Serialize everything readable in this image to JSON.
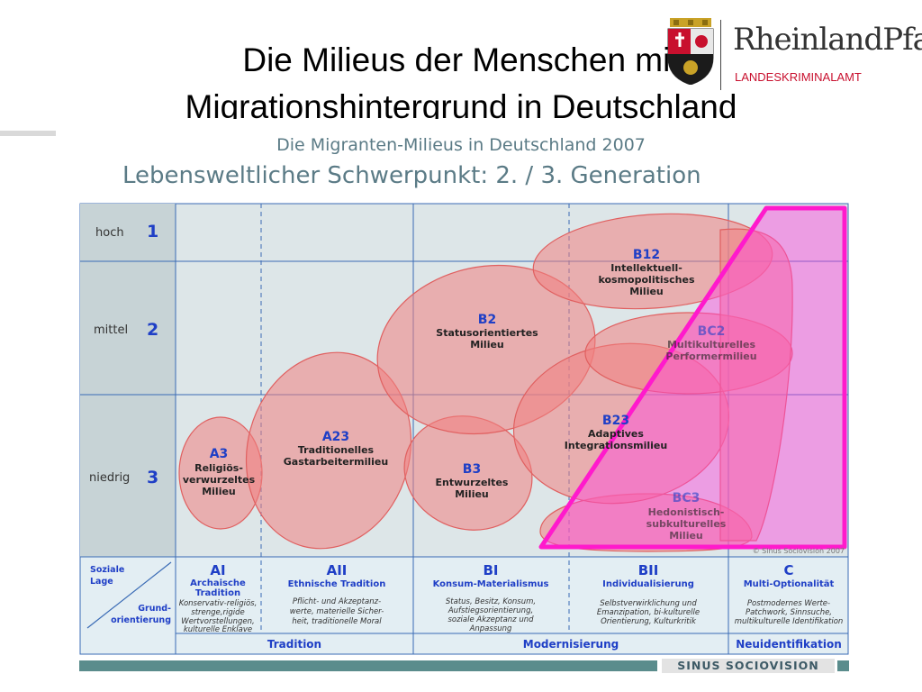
{
  "slide": {
    "title_line1": "Die Milieus der Menschen mit",
    "title_line2": "Migrationshintergrund in Deutschland"
  },
  "logo": {
    "name": "RheinlandPfalz",
    "subtitle": "LANDESKRIMINALAMT",
    "emblem": "coat-of-arms-icon"
  },
  "diagram": {
    "title": "Die Migranten-Milieus in Deutschland 2007",
    "subtitle": "Lebensweltlicher Schwerpunkt: 2. / 3. Generation",
    "rows": [
      {
        "label": "hoch",
        "num": "1"
      },
      {
        "label": "mittel",
        "num": "2"
      },
      {
        "label": "niedrig",
        "num": "3"
      }
    ],
    "milieus": [
      {
        "code": "A3",
        "lines": [
          "Religiös-",
          "verwurzeltes",
          "Milieu"
        ]
      },
      {
        "code": "A23",
        "lines": [
          "Traditionelles",
          "Gastarbeitermilieu"
        ]
      },
      {
        "code": "B2",
        "lines": [
          "Statusorientiertes",
          "Milieu"
        ]
      },
      {
        "code": "B3",
        "lines": [
          "Entwurzeltes",
          "Milieu"
        ]
      },
      {
        "code": "B12",
        "lines": [
          "Intellektuell-",
          "kosmopolitisches",
          "Milieu"
        ]
      },
      {
        "code": "B23",
        "lines": [
          "Adaptives",
          "Integrationsmilieu"
        ]
      },
      {
        "code": "BC2",
        "lines": [
          "Multikulturelles",
          "Performermilieu"
        ]
      },
      {
        "code": "BC3",
        "lines": [
          "Hedonistisch-",
          "subkulturelles",
          "Milieu"
        ]
      }
    ],
    "axis": {
      "social": [
        "Soziale",
        "Lage"
      ],
      "orientation": [
        "Grund-",
        "orientierung"
      ]
    },
    "columns": [
      {
        "code": "AI",
        "name": [
          "Archaische",
          "Tradition"
        ],
        "desc": [
          "Konservativ-religiös,",
          "strenge,rigide",
          "Wertvorstellungen,",
          "kulturelle Enklave"
        ]
      },
      {
        "code": "AII",
        "name": [
          "Ethnische Tradition"
        ],
        "desc": [
          "Pflicht- und Akzeptanz-",
          "werte, materielle Sicher-",
          "heit, traditionelle Moral"
        ]
      },
      {
        "code": "BI",
        "name": [
          "Konsum-Materialismus"
        ],
        "desc": [
          "Status, Besitz, Konsum,",
          "Aufstiegsorientierung,",
          "soziale Akzeptanz und",
          "Anpassung"
        ]
      },
      {
        "code": "BII",
        "name": [
          "Individualisierung"
        ],
        "desc": [
          "Selbstverwirklichung und",
          "Emanzipation, bi-kulturelle",
          "Orientierung, Kulturkritik"
        ]
      },
      {
        "code": "C",
        "name": [
          "Multi-Optionalität"
        ],
        "desc": [
          "Postmodernes Werte-",
          "Patchwork, Sinnsuche,",
          "multikulturelle Identifikation"
        ]
      }
    ],
    "bottom": [
      "Tradition",
      "Modernisierung",
      "Neuidentifikation"
    ],
    "copyright": "© Sinus Sociovision 2007"
  },
  "footer": {
    "brand": "SINUS SOCIOVISION"
  },
  "colors": {
    "milieu_fill": "#f08080",
    "milieu_stroke": "#e06060",
    "highlight": "#ff33cc",
    "grid_bg": "#dde6e8",
    "label_blue": "#1f3fc6"
  }
}
